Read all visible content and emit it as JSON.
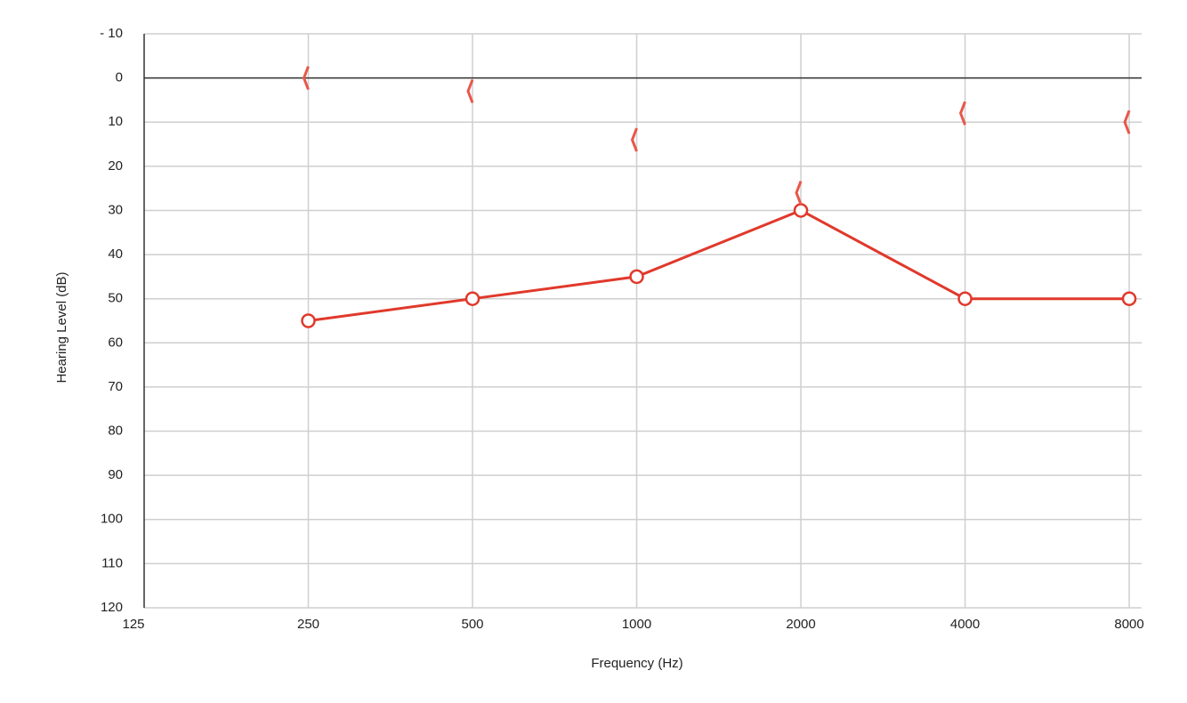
{
  "chart_data": {
    "type": "line",
    "x_label": "Frequency (Hz)",
    "y_label": "Hearing Level (dB)",
    "x": [
      250,
      500,
      1000,
      2000,
      4000,
      8000
    ],
    "series": [
      {
        "color": "#e0392b",
        "marker": "circle",
        "line": true,
        "values": [
          55,
          50,
          45,
          30,
          50,
          50
        ]
      },
      {
        "color": "#e8574a",
        "marker": "<",
        "line": false,
        "values": [
          0,
          3,
          14,
          26,
          8,
          10
        ]
      }
    ],
    "xscale": "log",
    "xlim": [
      125,
      8430
    ],
    "xticks": [
      125,
      250,
      500,
      1000,
      2000,
      4000,
      8000
    ],
    "ylim": [
      -10,
      120
    ],
    "yinverted": true,
    "yticks": [
      {
        "value": -10,
        "label": "- 10"
      },
      0,
      10,
      20,
      30,
      40,
      50,
      60,
      70,
      80,
      90,
      100,
      110,
      120
    ],
    "grid": true,
    "zero_line": true
  }
}
